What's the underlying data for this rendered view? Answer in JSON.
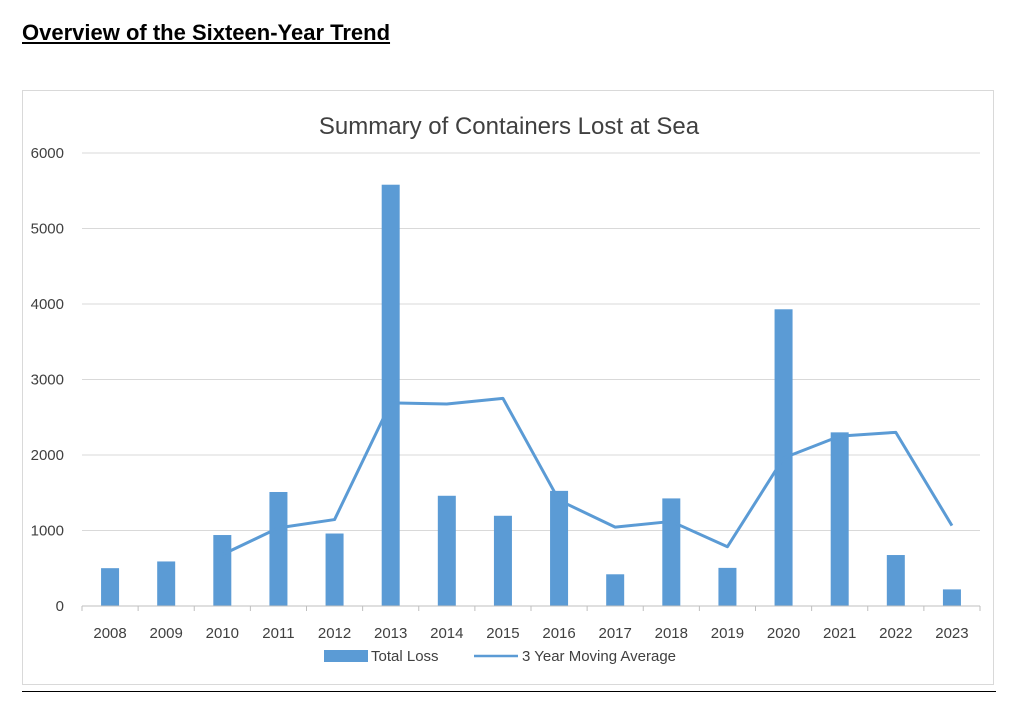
{
  "page": {
    "heading": "Overview of the Sixteen-Year Trend"
  },
  "chart_data": {
    "type": "bar",
    "title": "Summary of Containers Lost at Sea",
    "xlabel": "",
    "ylabel": "",
    "categories": [
      "2008",
      "2009",
      "2010",
      "2011",
      "2012",
      "2013",
      "2014",
      "2015",
      "2016",
      "2017",
      "2018",
      "2019",
      "2020",
      "2021",
      "2022",
      "2023"
    ],
    "ylim": [
      0,
      6000
    ],
    "yticks": [
      0,
      1000,
      2000,
      3000,
      4000,
      5000,
      6000
    ],
    "grid": true,
    "legend_position": "bottom",
    "series": [
      {
        "name": "Total Loss",
        "type": "bar",
        "color": "#5b9bd5",
        "values": [
          501,
          590,
          940,
          1510,
          960,
          5580,
          1460,
          1195,
          1525,
          420,
          1425,
          505,
          3930,
          2300,
          675,
          220
        ]
      },
      {
        "name": "3 Year Moving Average",
        "type": "line",
        "color": "#5b9bd5",
        "values": [
          null,
          null,
          680,
          1035,
          1145,
          2690,
          2675,
          2750,
          1400,
          1045,
          1120,
          785,
          1960,
          2250,
          2300,
          1065
        ]
      }
    ]
  }
}
